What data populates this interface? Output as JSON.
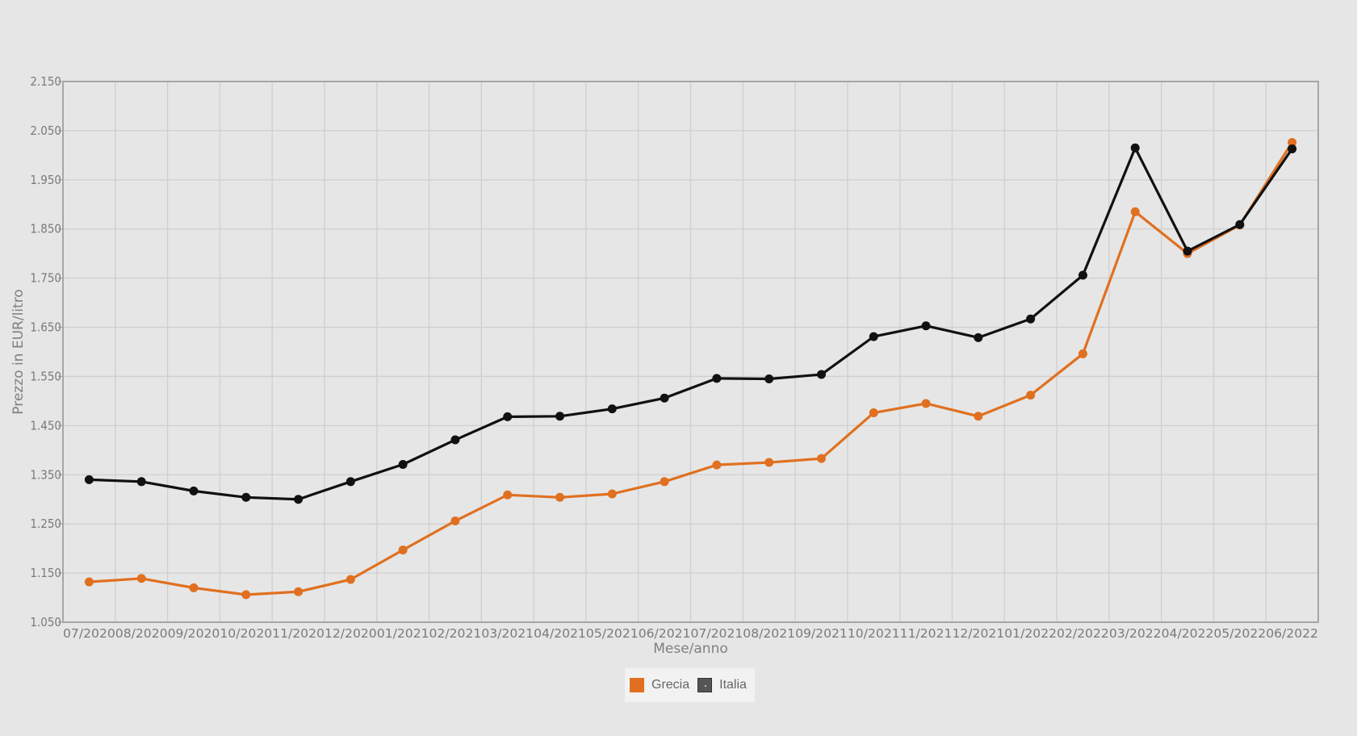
{
  "chart_data": {
    "type": "line",
    "xlabel": "Mese/anno",
    "ylabel": "Prezzo in EUR/litro",
    "ylim": [
      1.05,
      2.15
    ],
    "yticks": [
      "1.050",
      "1.150",
      "1.250",
      "1.350",
      "1.450",
      "1.550",
      "1.650",
      "1.750",
      "1.850",
      "1.950",
      "2.050",
      "2.150"
    ],
    "categories": [
      "07/2020",
      "08/2020",
      "09/2020",
      "10/2020",
      "11/2020",
      "12/2020",
      "01/2021",
      "02/2021",
      "03/2021",
      "04/2021",
      "05/2021",
      "06/2021",
      "07/2021",
      "08/2021",
      "09/2021",
      "10/2021",
      "11/2021",
      "12/2021",
      "01/2022",
      "02/2022",
      "03/2022",
      "04/2022",
      "05/2022",
      "06/2022"
    ],
    "grid": true,
    "legend_position": "bottom-center",
    "series": [
      {
        "name": "Grecia",
        "color": "#e07020",
        "values": [
          1.132,
          1.139,
          1.12,
          1.106,
          1.112,
          1.137,
          1.197,
          1.256,
          1.309,
          1.304,
          1.311,
          1.336,
          1.37,
          1.375,
          1.383,
          1.476,
          1.495,
          1.469,
          1.512,
          1.596,
          1.885,
          1.8,
          1.858,
          2.026
        ]
      },
      {
        "name": "Italia",
        "color": "#111111",
        "values": [
          1.34,
          1.336,
          1.317,
          1.304,
          1.3,
          1.336,
          1.371,
          1.421,
          1.468,
          1.469,
          1.484,
          1.506,
          1.546,
          1.545,
          1.554,
          1.631,
          1.653,
          1.629,
          1.667,
          1.756,
          2.015,
          1.805,
          1.859,
          2.013
        ]
      }
    ]
  }
}
